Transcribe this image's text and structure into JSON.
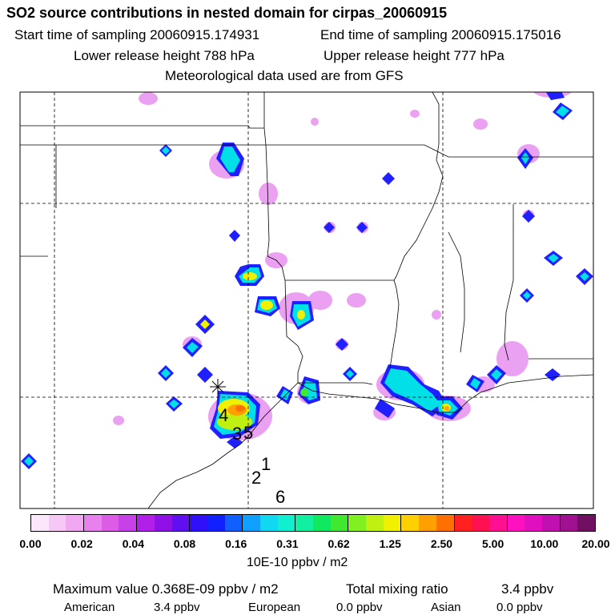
{
  "header": {
    "title": "SO2 source contributions in nested domain for cirpas_20060915",
    "start_time": "Start time of sampling 20060915.174931",
    "end_time": "End time of sampling 20060915.175016",
    "lower_release": "Lower release height  788 hPa",
    "upper_release": "Upper release height  777 hPa",
    "met_data": "Meteorological data used are from GFS"
  },
  "map": {
    "receptor_marker": "*",
    "source_labels": [
      "4",
      "3",
      "5",
      "1",
      "2",
      "6"
    ],
    "hotspot_colors": [
      "#00e6e6",
      "#1f1fff",
      "#a000e0",
      "#ff80ff",
      "#ffff00",
      "#ff8000"
    ]
  },
  "legend": {
    "colors": [
      "#fbe6fb",
      "#f6c8f6",
      "#f0a8f0",
      "#e880ee",
      "#dc5ce8",
      "#c840e8",
      "#b020e8",
      "#9010e8",
      "#6010f0",
      "#3010f8",
      "#1020ff",
      "#1060ff",
      "#10a0ff",
      "#10d8f0",
      "#10f0d0",
      "#10f0a0",
      "#10e860",
      "#40e830",
      "#80f020",
      "#c0f010",
      "#f0f000",
      "#ffd000",
      "#ffa000",
      "#ff7000",
      "#ff2020",
      "#ff1050",
      "#ff1090",
      "#ff10c0",
      "#e010c0",
      "#c010b0",
      "#a01090",
      "#701060"
    ],
    "ticks": [
      "0.00",
      "0.02",
      "0.04",
      "0.08",
      "0.16",
      "0.31",
      "0.62",
      "1.25",
      "2.50",
      "5.00",
      "10.00",
      "20.00"
    ],
    "unit": "10E-10 ppbv / m2"
  },
  "summary": {
    "max_value": "Maximum value  0.368E-09 ppbv / m2",
    "total_mixing": "Total mixing ratio",
    "total_value": "3.4 ppbv",
    "american_label": "American",
    "american_value": "3.4 ppbv",
    "european_label": "European",
    "european_value": "0.0 ppbv",
    "asian_label": "Asian",
    "asian_value": "0.0 ppbv"
  }
}
